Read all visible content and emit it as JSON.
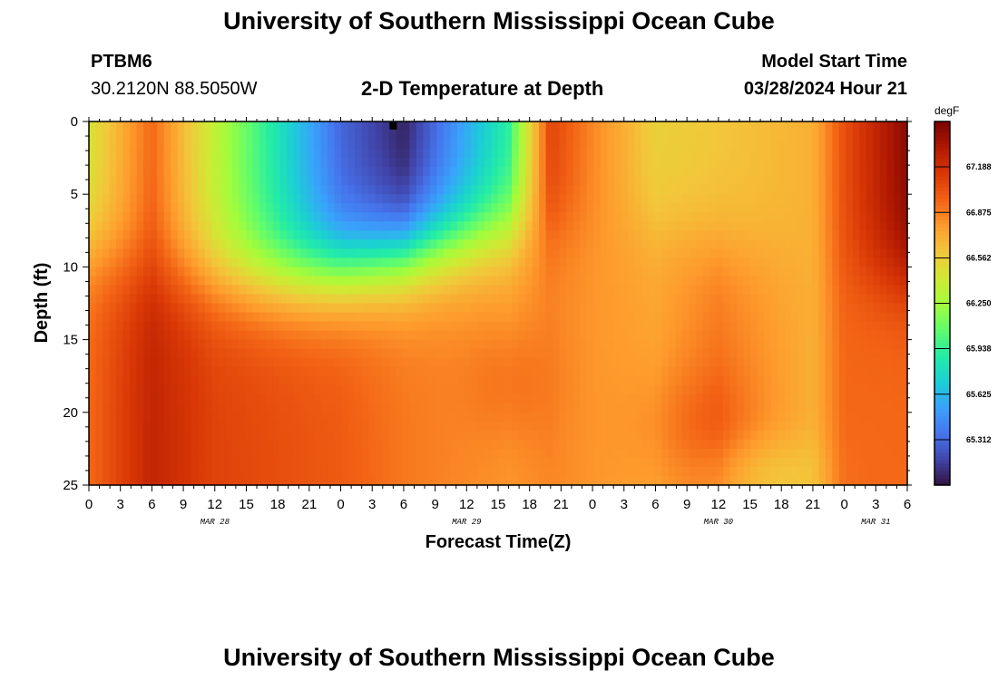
{
  "page": {
    "title_top": "University of Southern Mississippi Ocean Cube",
    "title_bottom": "University of Southern Mississippi Ocean Cube",
    "station_id": "PTBM6",
    "station_coords": "30.2120N  88.5050W",
    "center_title": "2-D Temperature at Depth",
    "model_label": "Model Start Time",
    "model_time": "03/28/2024 Hour 21"
  },
  "chart_data": {
    "type": "heatmap",
    "title": "2-D Temperature at Depth",
    "xlabel": "Forecast Time(Z)",
    "ylabel": "Depth (ft)",
    "x_tick_labels": [
      "0",
      "3",
      "6",
      "9",
      "12",
      "15",
      "18",
      "21",
      "0",
      "3",
      "6",
      "9",
      "12",
      "15",
      "18",
      "21",
      "0",
      "3",
      "6",
      "9",
      "12",
      "15",
      "18",
      "21",
      "0",
      "3",
      "6"
    ],
    "x_hours_since_start": [
      0,
      3,
      6,
      9,
      12,
      15,
      18,
      21,
      24,
      27,
      30,
      33,
      36,
      39,
      42,
      45,
      48,
      51,
      54,
      57,
      60,
      63,
      66,
      69,
      72,
      75,
      78
    ],
    "date_labels": [
      {
        "label": "MAR 28",
        "at_hour": 12
      },
      {
        "label": "MAR 29",
        "at_hour": 36
      },
      {
        "label": "MAR 30",
        "at_hour": 60
      },
      {
        "label": "MAR 31",
        "at_hour": 75
      }
    ],
    "xlim": [
      0,
      78
    ],
    "ylim": [
      25,
      0
    ],
    "y_ticks": [
      0,
      5,
      10,
      15,
      20,
      25
    ],
    "colorbar": {
      "unit": "degF",
      "min": 65.0,
      "max": 67.5,
      "ticks": [
        67.188,
        66.875,
        66.562,
        66.25,
        65.938,
        65.625,
        65.312
      ],
      "tick_labels": [
        "67.188",
        "66.875",
        "66.562",
        "66.250",
        "65.938",
        "65.625",
        "65.312"
      ],
      "colors": [
        "#30123b",
        "#4145ab",
        "#4675ed",
        "#39a2fc",
        "#1bcfd4",
        "#24eca6",
        "#61fc6c",
        "#a4fc3b",
        "#d1e834",
        "#f3c63a",
        "#fe9b2d",
        "#f36315",
        "#d93806",
        "#b11901",
        "#7a0402"
      ]
    },
    "grid": false,
    "temperature_field": {
      "description_units": "degF",
      "base_profile": [
        {
          "hour": 0,
          "surface": 66.45,
          "bottom": 66.95
        },
        {
          "hour": 6,
          "surface": 66.95,
          "bottom": 67.25
        },
        {
          "hour": 12,
          "surface": 66.35,
          "bottom": 67.1
        },
        {
          "hour": 24,
          "surface": 65.3,
          "bottom": 67.0
        },
        {
          "hour": 30,
          "surface": 65.05,
          "bottom": 66.9
        },
        {
          "hour": 40,
          "surface": 65.9,
          "bottom": 66.8
        },
        {
          "hour": 44,
          "surface": 67.1,
          "bottom": 66.85
        },
        {
          "hour": 48,
          "surface": 66.85,
          "bottom": 66.8
        },
        {
          "hour": 54,
          "surface": 66.55,
          "bottom": 66.75
        },
        {
          "hour": 60,
          "surface": 66.6,
          "bottom": 66.9
        },
        {
          "hour": 69,
          "surface": 66.7,
          "bottom": 66.7
        },
        {
          "hour": 72,
          "surface": 67.05,
          "bottom": 66.95
        },
        {
          "hour": 78,
          "surface": 67.45,
          "bottom": 66.95
        }
      ]
    },
    "marker": {
      "hour": 29,
      "depth": 0.3
    }
  }
}
